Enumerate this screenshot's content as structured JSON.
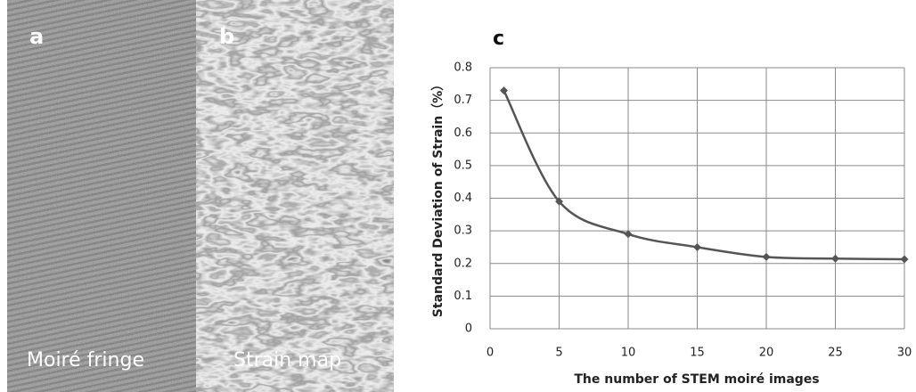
{
  "panels": [
    {
      "label": "a",
      "caption": "Moiré fringe"
    },
    {
      "label": "b",
      "caption": "Strain map"
    },
    {
      "label": "c"
    }
  ],
  "chart_data": {
    "type": "line",
    "title": null,
    "x_label": "The number of STEM moiré images",
    "y_label": "Standard Deviation of Strain（%）",
    "x": [
      1,
      5,
      10,
      15,
      20,
      25,
      30
    ],
    "values": [
      0.73,
      0.39,
      0.29,
      0.25,
      0.22,
      0.215,
      0.213
    ],
    "color": "#555555",
    "xlim": [
      0,
      30
    ],
    "xticks": [
      0,
      5,
      10,
      15,
      20,
      25,
      30
    ],
    "ylim": [
      0,
      0.8
    ],
    "yticks": [
      0,
      0.1,
      0.2,
      0.3,
      0.4,
      0.5,
      0.6,
      0.7,
      0.8
    ],
    "grid": true,
    "smooth": true
  }
}
